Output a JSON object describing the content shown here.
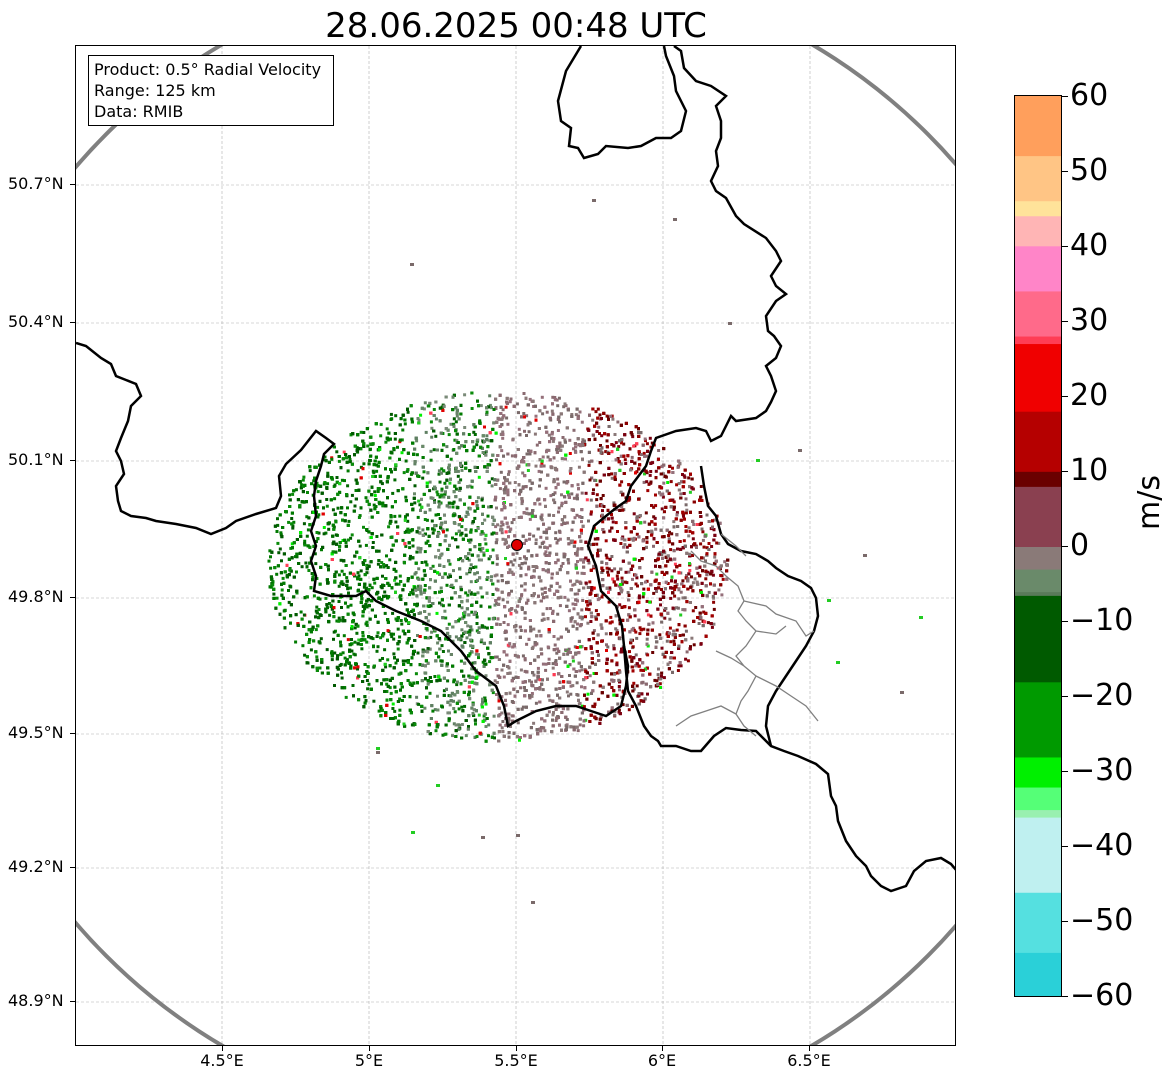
{
  "title": "28.06.2025 00:48 UTC",
  "info": {
    "product": "Product: 0.5° Radial Velocity",
    "range": "Range: 125 km",
    "data": "Data: RMIB"
  },
  "y_ticks": [
    "50.7°N",
    "50.4°N",
    "50.1°N",
    "49.8°N",
    "49.5°N",
    "49.2°N",
    "48.9°N"
  ],
  "x_ticks": [
    "4.5°E",
    "5°E",
    "5.5°E",
    "6°E",
    "6.5°E"
  ],
  "map": {
    "lon_range": [
      4.0,
      7.0
    ],
    "lat_range": [
      48.8,
      50.99
    ],
    "radar_site": {
      "lon": 5.505,
      "lat": 49.915
    },
    "range_km": 125,
    "colors": {
      "border": "#000000",
      "subdivision": "#808080",
      "range_ring": "#808080",
      "radar_marker": "#e00000"
    }
  },
  "colorbar": {
    "label": "m/s",
    "ticks": [
      "60",
      "50",
      "40",
      "30",
      "20",
      "10",
      "0",
      "−10",
      "−20",
      "−30",
      "−40",
      "−50",
      "−60"
    ],
    "range": [
      -60,
      60
    ],
    "stops": [
      {
        "v": 60,
        "c": "#ff9f5c"
      },
      {
        "v": 52,
        "c": "#ffc585"
      },
      {
        "v": 46,
        "c": "#ffe39a"
      },
      {
        "v": 44,
        "c": "#ffb5b5"
      },
      {
        "v": 40,
        "c": "#ff85c8"
      },
      {
        "v": 34,
        "c": "#ff6a8a"
      },
      {
        "v": 28,
        "c": "#ff3d55"
      },
      {
        "v": 27,
        "c": "#f00000"
      },
      {
        "v": 18,
        "c": "#b50000"
      },
      {
        "v": 10,
        "c": "#6a0000"
      },
      {
        "v": 8,
        "c": "#8a4050"
      },
      {
        "v": 0,
        "c": "#8a7a78"
      },
      {
        "v": -3,
        "c": "#6a8a6a"
      },
      {
        "v": -6,
        "c": "#5a7a5a"
      },
      {
        "v": -6.5,
        "c": "#005a00"
      },
      {
        "v": -18,
        "c": "#009a00"
      },
      {
        "v": -28,
        "c": "#00f000"
      },
      {
        "v": -32,
        "c": "#55ff77"
      },
      {
        "v": -35,
        "c": "#99f0b0"
      },
      {
        "v": -36,
        "c": "#bff0f0"
      },
      {
        "v": -46,
        "c": "#55e0e0"
      },
      {
        "v": -54,
        "c": "#2ad0d8"
      },
      {
        "v": -60,
        "c": "#1f77b4"
      }
    ]
  }
}
